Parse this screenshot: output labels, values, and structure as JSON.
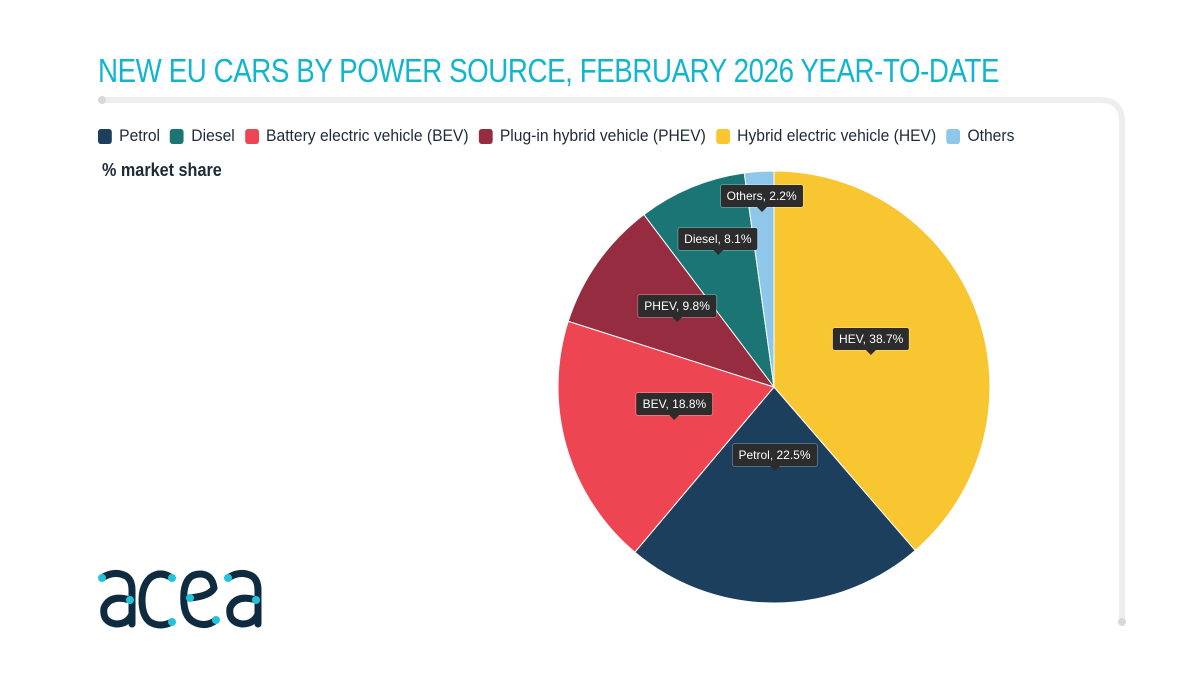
{
  "title": "NEW EU CARS BY POWER SOURCE, FEBRUARY 2026 YEAR-TO-DATE",
  "subtitle": "% market share",
  "logo_text": "acea",
  "colors": {
    "title": "#12b5cf",
    "frame": "#eeeeee"
  },
  "chart_data": {
    "type": "pie",
    "title": "NEW EU CARS BY POWER SOURCE, FEBRUARY 2026 YEAR-TO-DATE",
    "unit": "% market share",
    "legend": [
      "Petrol",
      "Diesel",
      "Battery electric vehicle (BEV)",
      "Plug-in hybrid vehicle (PHEV)",
      "Hybrid electric vehicle (HEV)",
      "Others"
    ],
    "legend_placement": "top",
    "slices": [
      {
        "legend": "Hybrid electric vehicle (HEV)",
        "label": "HEV, 38.7%",
        "value": 38.7,
        "color": "#f8c630"
      },
      {
        "legend": "Petrol",
        "label": "Petrol, 22.5%",
        "value": 22.5,
        "color": "#1c3f5e"
      },
      {
        "legend": "Battery electric vehicle (BEV)",
        "label": "BEV, 18.8%",
        "value": 18.8,
        "color": "#ee4553"
      },
      {
        "legend": "Plug-in hybrid vehicle (PHEV)",
        "label": "PHEV, 9.8%",
        "value": 9.8,
        "color": "#952c40"
      },
      {
        "legend": "Diesel",
        "label": "Diesel, 8.1%",
        "value": 8.1,
        "color": "#1b7575"
      },
      {
        "legend": "Others",
        "label": "Others, 2.2%",
        "value": 2.2,
        "color": "#8ec7ea"
      }
    ]
  }
}
